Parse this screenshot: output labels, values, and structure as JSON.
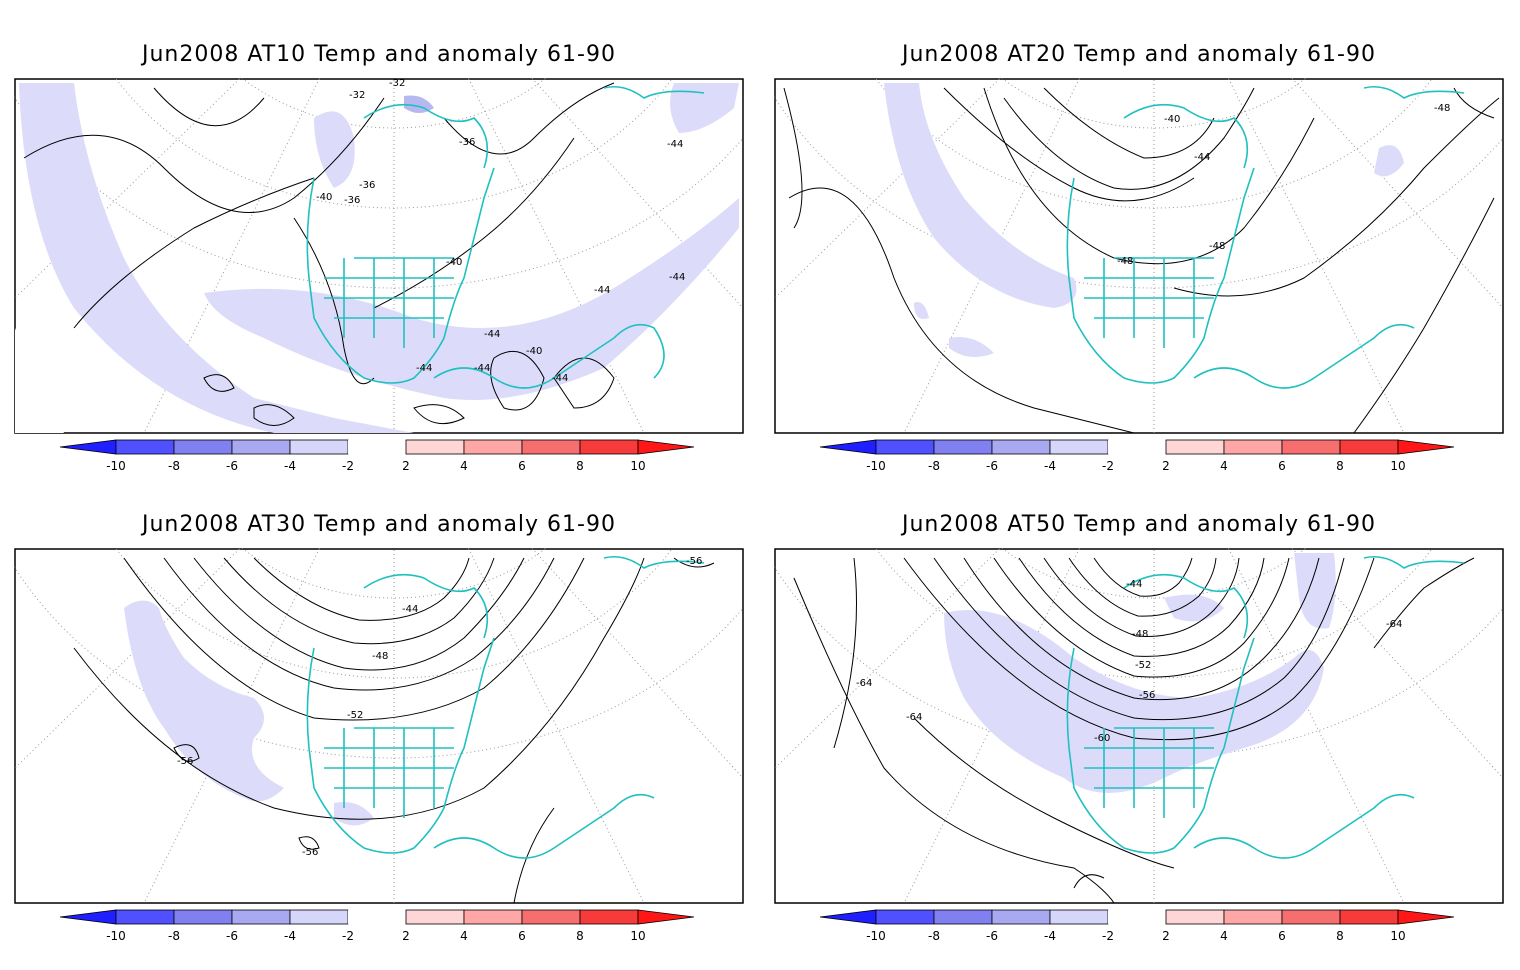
{
  "panels": [
    {
      "title": "Jun2008 AT10 Temp and anomaly 61-90",
      "contour_labels": [
        "-32",
        "-32",
        "-36",
        "-36",
        "-36",
        "-40",
        "-40",
        "-40",
        "-44",
        "-44",
        "-44",
        "-44",
        "-44",
        "-44",
        "-44"
      ]
    },
    {
      "title": "Jun2008 AT20 Temp and anomaly 61-90",
      "contour_labels": [
        "-40",
        "-44",
        "-48",
        "-48",
        "-48"
      ]
    },
    {
      "title": "Jun2008 AT30 Temp and anomaly 61-90",
      "contour_labels": [
        "-44",
        "-48",
        "-52",
        "-56",
        "-56",
        "-56"
      ]
    },
    {
      "title": "Jun2008 AT50 Temp and anomaly 61-90",
      "contour_labels": [
        "-44",
        "-48",
        "-52",
        "-56",
        "-60",
        "-64",
        "-64",
        "-64"
      ]
    }
  ],
  "colorbar": {
    "tick_labels": [
      "-10",
      "-8",
      "-6",
      "-4",
      "-2",
      "2",
      "4",
      "6",
      "8",
      "10"
    ],
    "colors": [
      "#1f1fff",
      "#5050ff",
      "#8080f0",
      "#a9a9f2",
      "#d6d6fa",
      "#ffffff",
      "#ffd6d6",
      "#ffa6a6",
      "#f76e6e",
      "#f73b3b",
      "#ff1616"
    ]
  },
  "map_style": {
    "coast_color": "#20c0c0",
    "anomaly_fill_color": "#dcdcfa",
    "strong_anomaly_color": "#b8b8f0"
  }
}
